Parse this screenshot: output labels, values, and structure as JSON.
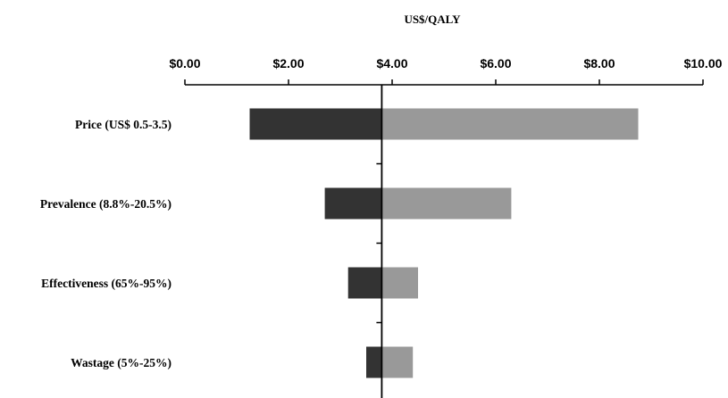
{
  "chart_data": {
    "type": "bar",
    "orientation": "horizontal",
    "subtype": "tornado",
    "title": "US$/QALY",
    "xlabel": "",
    "ylabel": "",
    "xlim": [
      0,
      10
    ],
    "x_ticks": [
      0,
      2,
      4,
      6,
      8,
      10
    ],
    "x_tick_labels": [
      "$0.00",
      "$2.00",
      "$4.00",
      "$6.00",
      "$8.00",
      "$10.00"
    ],
    "x_axis_position": "top",
    "baseline": 3.8,
    "grid": false,
    "categories": [
      "Price (US$ 0.5-3.5)",
      "Prevalence (8.8%-20.5%)",
      "Effectiveness (65%-95%)",
      "Wastage (5%-25%)"
    ],
    "series": [
      {
        "values": [
          1.25,
          2.7,
          3.15,
          3.5
        ]
      },
      {
        "values": [
          8.75,
          6.3,
          4.5,
          4.4
        ]
      }
    ],
    "colors": {
      "low": "#333333",
      "high": "#999999",
      "axis": "#000000"
    }
  }
}
